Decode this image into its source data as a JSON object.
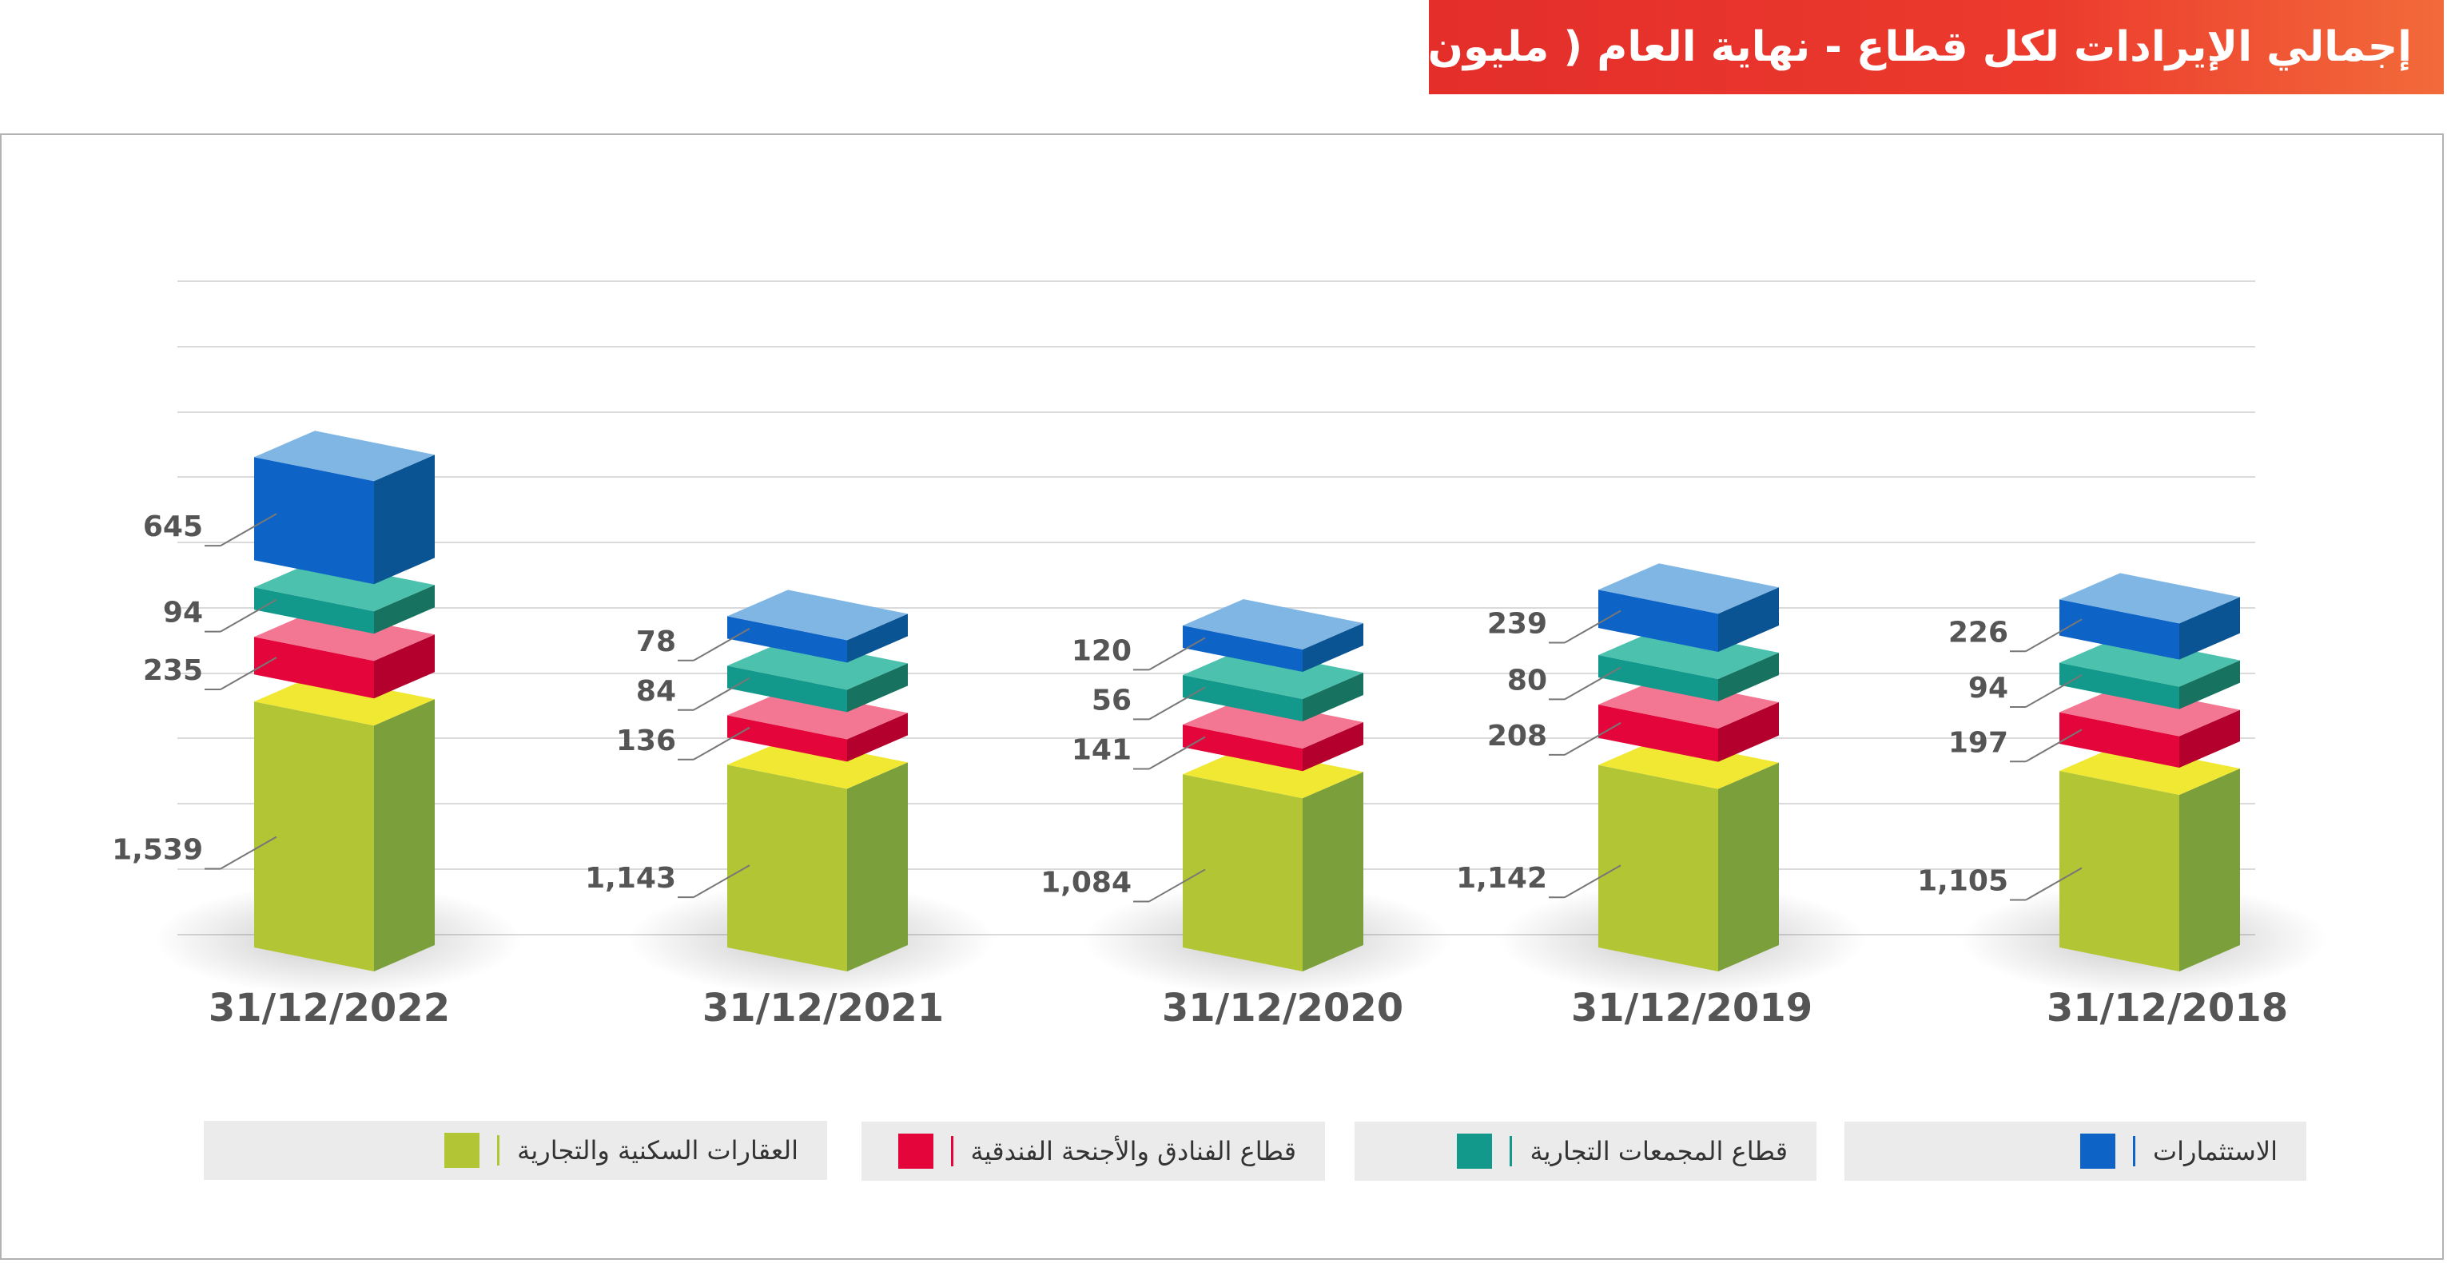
{
  "title": "إجمالي الإيرادات لكل قطاع - نهاية العام ( مليون رق )",
  "chart_data": {
    "type": "bar",
    "stacked": true,
    "categories": [
      "31/12/2022",
      "31/12/2021",
      "31/12/2020",
      "31/12/2019",
      "31/12/2018"
    ],
    "series": [
      {
        "name": "العقارات السكنية والتجارية",
        "values": [
          "1,539",
          "1,143",
          "1,084",
          "1,142",
          "1,105"
        ],
        "color": "#b2c635"
      },
      {
        "name": "قطاع الفنادق والأجنحة الفندقية",
        "values": [
          "235",
          "136",
          "141",
          "208",
          "197"
        ],
        "color": "#e4063a"
      },
      {
        "name": "قطاع المجمعات التجارية",
        "values": [
          "94",
          "84",
          "56",
          "80",
          "94"
        ],
        "color": "#12998b"
      },
      {
        "name": "الاستثمارات",
        "values": [
          "645",
          "78",
          "120",
          "239",
          "226"
        ],
        "color": "#0d63c6"
      }
    ],
    "grid": true,
    "legend_position": "bottom"
  }
}
